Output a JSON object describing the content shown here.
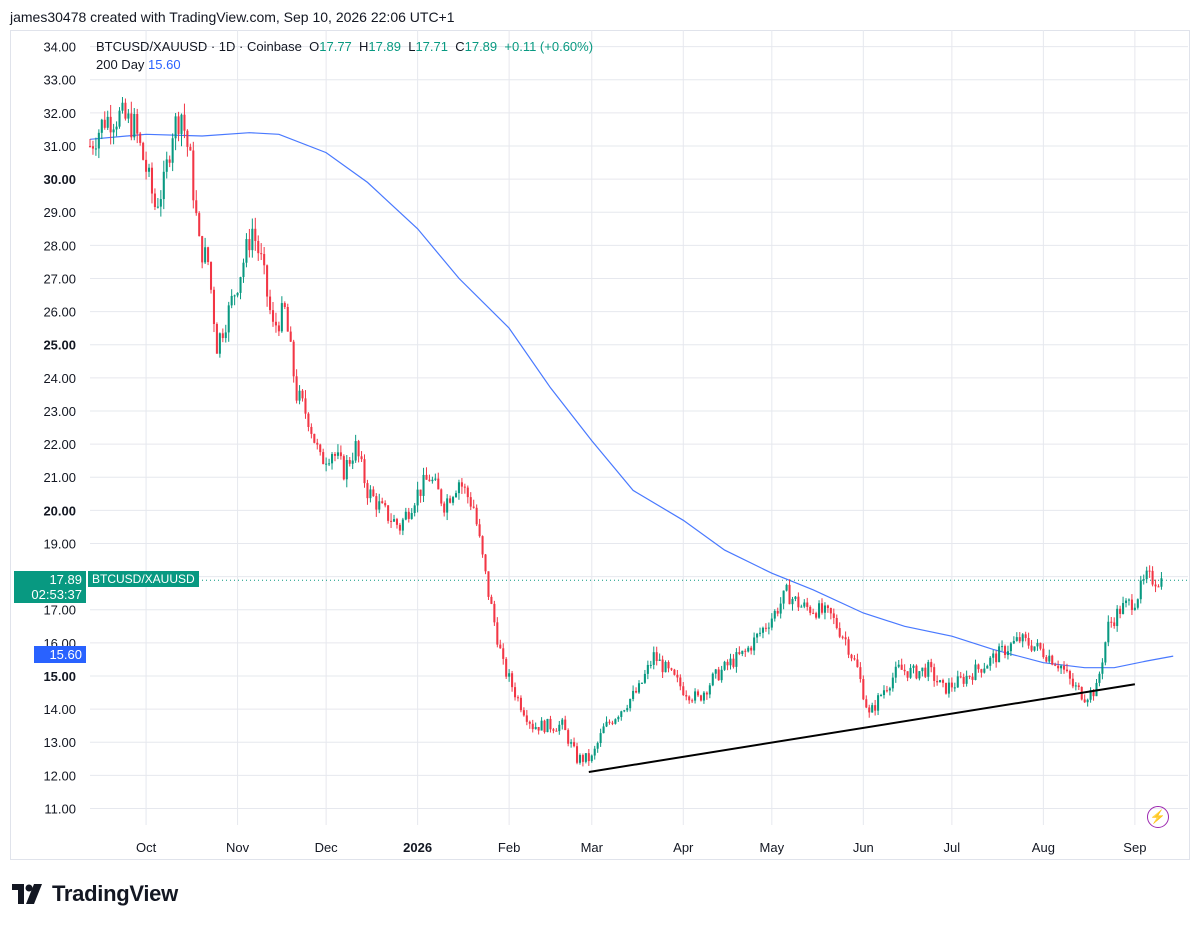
{
  "header": {
    "text": "james30478 created with TradingView.com, Sep 10, 2026 22:06 UTC+1"
  },
  "legend": {
    "symbol": "BTCUSD/XAUUSD · 1D · Coinbase",
    "o_label": "O",
    "o_value": "17.77",
    "h_label": "H",
    "h_value": "17.89",
    "l_label": "L",
    "l_value": "17.71",
    "c_label": "C",
    "c_value": "17.89",
    "change": "+0.11 (+0.60%)",
    "ma_label": "200 Day",
    "ma_value": "15.60"
  },
  "tags": {
    "price": "17.89",
    "countdown": "02:53:37",
    "symbol": "BTCUSD/XAUUSD",
    "ma": "15.60"
  },
  "footer": {
    "brand": "TradingView"
  },
  "colors": {
    "up": "#089981",
    "down": "#f23645",
    "ma": "#2962ff",
    "trendline": "#000000"
  },
  "chart_data": {
    "type": "candlestick",
    "title": "BTCUSD/XAUUSD · 1D · Coinbase",
    "ylim": [
      10.5,
      34.5
    ],
    "y_ticks": [
      "11.00",
      "12.00",
      "13.00",
      "14.00",
      "15.00",
      "16.00",
      "17.00",
      "18.00",
      "19.00",
      "20.00",
      "21.00",
      "22.00",
      "23.00",
      "24.00",
      "25.00",
      "26.00",
      "27.00",
      "28.00",
      "29.00",
      "30.00",
      "31.00",
      "32.00",
      "33.00",
      "34.00"
    ],
    "y_ticks_bold": [
      "15.00",
      "20.00",
      "25.00",
      "30.00"
    ],
    "x_ticks": [
      {
        "label": "Oct",
        "date": "2025-10-01"
      },
      {
        "label": "Nov",
        "date": "2025-11-01"
      },
      {
        "label": "Dec",
        "date": "2025-12-01"
      },
      {
        "label": "2026",
        "date": "2026-01-01",
        "bold": true
      },
      {
        "label": "Feb",
        "date": "2026-02-01"
      },
      {
        "label": "Mar",
        "date": "2026-03-01"
      },
      {
        "label": "Apr",
        "date": "2026-04-01"
      },
      {
        "label": "May",
        "date": "2026-05-01"
      },
      {
        "label": "Jun",
        "date": "2026-06-01"
      },
      {
        "label": "Jul",
        "date": "2026-07-01"
      },
      {
        "label": "Aug",
        "date": "2026-08-01"
      },
      {
        "label": "Sep",
        "date": "2026-09-01"
      }
    ],
    "x_range": [
      "2025-09-12",
      "2026-09-19"
    ],
    "close_path": [
      [
        "2025-09-12",
        31.0
      ],
      [
        "2025-09-17",
        31.8
      ],
      [
        "2025-09-22",
        31.9
      ],
      [
        "2025-09-27",
        31.6
      ],
      [
        "2025-10-01",
        30.3
      ],
      [
        "2025-10-04",
        29.2
      ],
      [
        "2025-10-07",
        29.8
      ],
      [
        "2025-10-10",
        31.5
      ],
      [
        "2025-10-13",
        32.0
      ],
      [
        "2025-10-16",
        30.5
      ],
      [
        "2025-10-19",
        28.0
      ],
      [
        "2025-10-22",
        27.5
      ],
      [
        "2025-10-25",
        25.0
      ],
      [
        "2025-10-29",
        26.0
      ],
      [
        "2025-11-02",
        27.2
      ],
      [
        "2025-11-06",
        28.5
      ],
      [
        "2025-11-09",
        27.5
      ],
      [
        "2025-11-13",
        25.5
      ],
      [
        "2025-11-17",
        26.0
      ],
      [
        "2025-11-21",
        23.5
      ],
      [
        "2025-11-25",
        22.8
      ],
      [
        "2025-11-29",
        21.5
      ],
      [
        "2025-12-03",
        21.8
      ],
      [
        "2025-12-07",
        21.2
      ],
      [
        "2025-12-11",
        21.9
      ],
      [
        "2025-12-15",
        20.6
      ],
      [
        "2025-12-20",
        20.0
      ],
      [
        "2025-12-26",
        19.5
      ],
      [
        "2025-12-31",
        20.4
      ],
      [
        "2026-01-05",
        21.0
      ],
      [
        "2026-01-10",
        20.2
      ],
      [
        "2026-01-15",
        20.9
      ],
      [
        "2026-01-20",
        20.1
      ],
      [
        "2026-01-25",
        17.5
      ],
      [
        "2026-01-30",
        15.3
      ],
      [
        "2026-02-04",
        14.3
      ],
      [
        "2026-02-09",
        13.5
      ],
      [
        "2026-02-14",
        13.5
      ],
      [
        "2026-02-19",
        13.5
      ],
      [
        "2026-02-24",
        12.5
      ],
      [
        "2026-03-01",
        12.5
      ],
      [
        "2026-03-05",
        13.4
      ],
      [
        "2026-03-11",
        14.0
      ],
      [
        "2026-03-17",
        14.6
      ],
      [
        "2026-03-22",
        15.6
      ],
      [
        "2026-03-27",
        15.1
      ],
      [
        "2026-04-01",
        14.6
      ],
      [
        "2026-04-06",
        14.3
      ],
      [
        "2026-04-11",
        14.9
      ],
      [
        "2026-04-17",
        15.4
      ],
      [
        "2026-04-22",
        15.7
      ],
      [
        "2026-04-27",
        16.3
      ],
      [
        "2026-05-02",
        16.9
      ],
      [
        "2026-05-06",
        17.5
      ],
      [
        "2026-05-11",
        17.1
      ],
      [
        "2026-05-16",
        17.0
      ],
      [
        "2026-05-21",
        16.8
      ],
      [
        "2026-05-26",
        16.1
      ],
      [
        "2026-05-30",
        15.2
      ],
      [
        "2026-06-03",
        13.8
      ],
      [
        "2026-06-08",
        14.6
      ],
      [
        "2026-06-13",
        15.2
      ],
      [
        "2026-06-18",
        15.1
      ],
      [
        "2026-06-23",
        15.2
      ],
      [
        "2026-06-28",
        14.6
      ],
      [
        "2026-07-03",
        14.8
      ],
      [
        "2026-07-08",
        15.1
      ],
      [
        "2026-07-13",
        15.4
      ],
      [
        "2026-07-19",
        15.8
      ],
      [
        "2026-07-24",
        16.1
      ],
      [
        "2026-07-29",
        15.9
      ],
      [
        "2026-08-03",
        15.6
      ],
      [
        "2026-08-07",
        15.3
      ],
      [
        "2026-08-11",
        14.7
      ],
      [
        "2026-08-15",
        14.4
      ],
      [
        "2026-08-19",
        14.6
      ],
      [
        "2026-08-23",
        16.5
      ],
      [
        "2026-08-27",
        17.0
      ],
      [
        "2026-09-01",
        17.3
      ],
      [
        "2026-09-05",
        17.95
      ],
      [
        "2026-09-10",
        17.89
      ]
    ],
    "ma200_path": [
      [
        "2025-09-12",
        31.2
      ],
      [
        "2025-10-01",
        31.35
      ],
      [
        "2025-10-20",
        31.3
      ],
      [
        "2025-11-05",
        31.4
      ],
      [
        "2025-11-15",
        31.35
      ],
      [
        "2025-12-01",
        30.8
      ],
      [
        "2025-12-15",
        29.9
      ],
      [
        "2026-01-01",
        28.5
      ],
      [
        "2026-01-15",
        27.0
      ],
      [
        "2026-02-01",
        25.5
      ],
      [
        "2026-02-15",
        23.7
      ],
      [
        "2026-03-01",
        22.1
      ],
      [
        "2026-03-15",
        20.6
      ],
      [
        "2026-04-01",
        19.7
      ],
      [
        "2026-04-15",
        18.8
      ],
      [
        "2026-05-01",
        18.1
      ],
      [
        "2026-05-15",
        17.6
      ],
      [
        "2026-06-01",
        16.9
      ],
      [
        "2026-06-15",
        16.5
      ],
      [
        "2026-07-01",
        16.2
      ],
      [
        "2026-07-15",
        15.8
      ],
      [
        "2026-08-01",
        15.4
      ],
      [
        "2026-08-15",
        15.25
      ],
      [
        "2026-08-25",
        15.25
      ],
      [
        "2026-09-05",
        15.45
      ],
      [
        "2026-09-14",
        15.6
      ]
    ],
    "trendline": [
      [
        "2026-02-28",
        12.1
      ],
      [
        "2026-09-01",
        14.75
      ]
    ],
    "last_price": 17.89,
    "ma_last": 15.6
  }
}
